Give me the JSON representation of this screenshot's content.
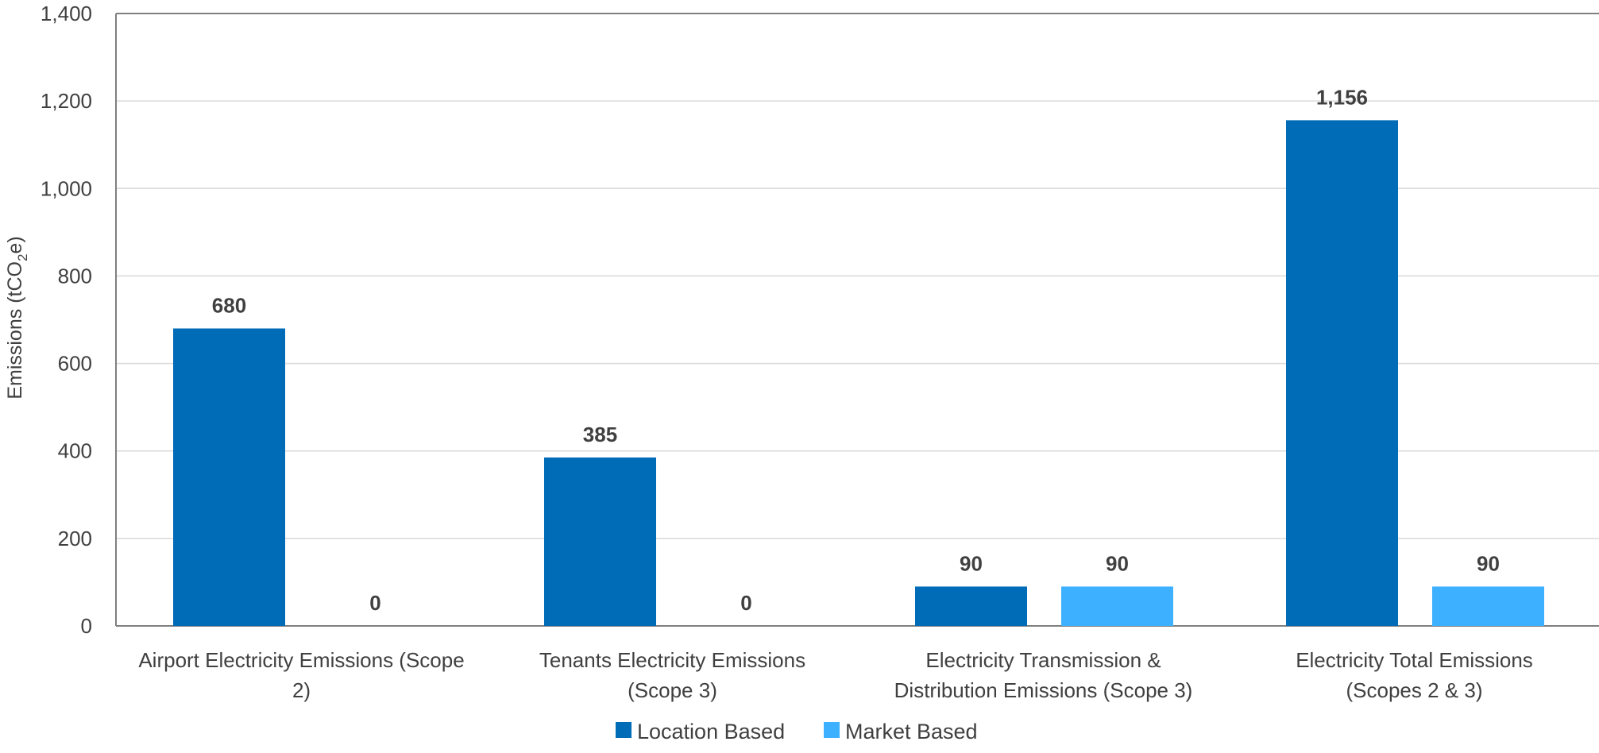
{
  "chart_data": {
    "type": "bar",
    "title": "",
    "xlabel": "",
    "ylabel": "Emissions (tCO2e)",
    "ylabel_parts": {
      "pre": "Emissions (tCO",
      "sub": "2",
      "post": "e)"
    },
    "ylim": [
      0,
      1400
    ],
    "yticks": [
      0,
      200,
      400,
      600,
      800,
      1000,
      1200,
      1400
    ],
    "ytick_labels": [
      "0",
      "200",
      "400",
      "600",
      "800",
      "1,000",
      "1,200",
      "1,400"
    ],
    "grid": true,
    "legend_position": "bottom",
    "categories": [
      [
        "Airport Electricity Emissions (Scope",
        "2)"
      ],
      [
        "Tenants Electricity Emissions",
        "(Scope 3)"
      ],
      [
        "Electricity Transmission &",
        "Distribution Emissions (Scope 3)"
      ],
      [
        "Electricity Total Emissions",
        "(Scopes 2 & 3)"
      ]
    ],
    "series": [
      {
        "name": "Location Based",
        "color": "#006BB6",
        "values": [
          680,
          385,
          90,
          1156
        ],
        "labels": [
          "680",
          "385",
          "90",
          "1,156"
        ]
      },
      {
        "name": "Market Based",
        "color": "#3DB0FF",
        "values": [
          0,
          0,
          90,
          90
        ],
        "labels": [
          "0",
          "0",
          "90",
          "90"
        ]
      }
    ]
  }
}
